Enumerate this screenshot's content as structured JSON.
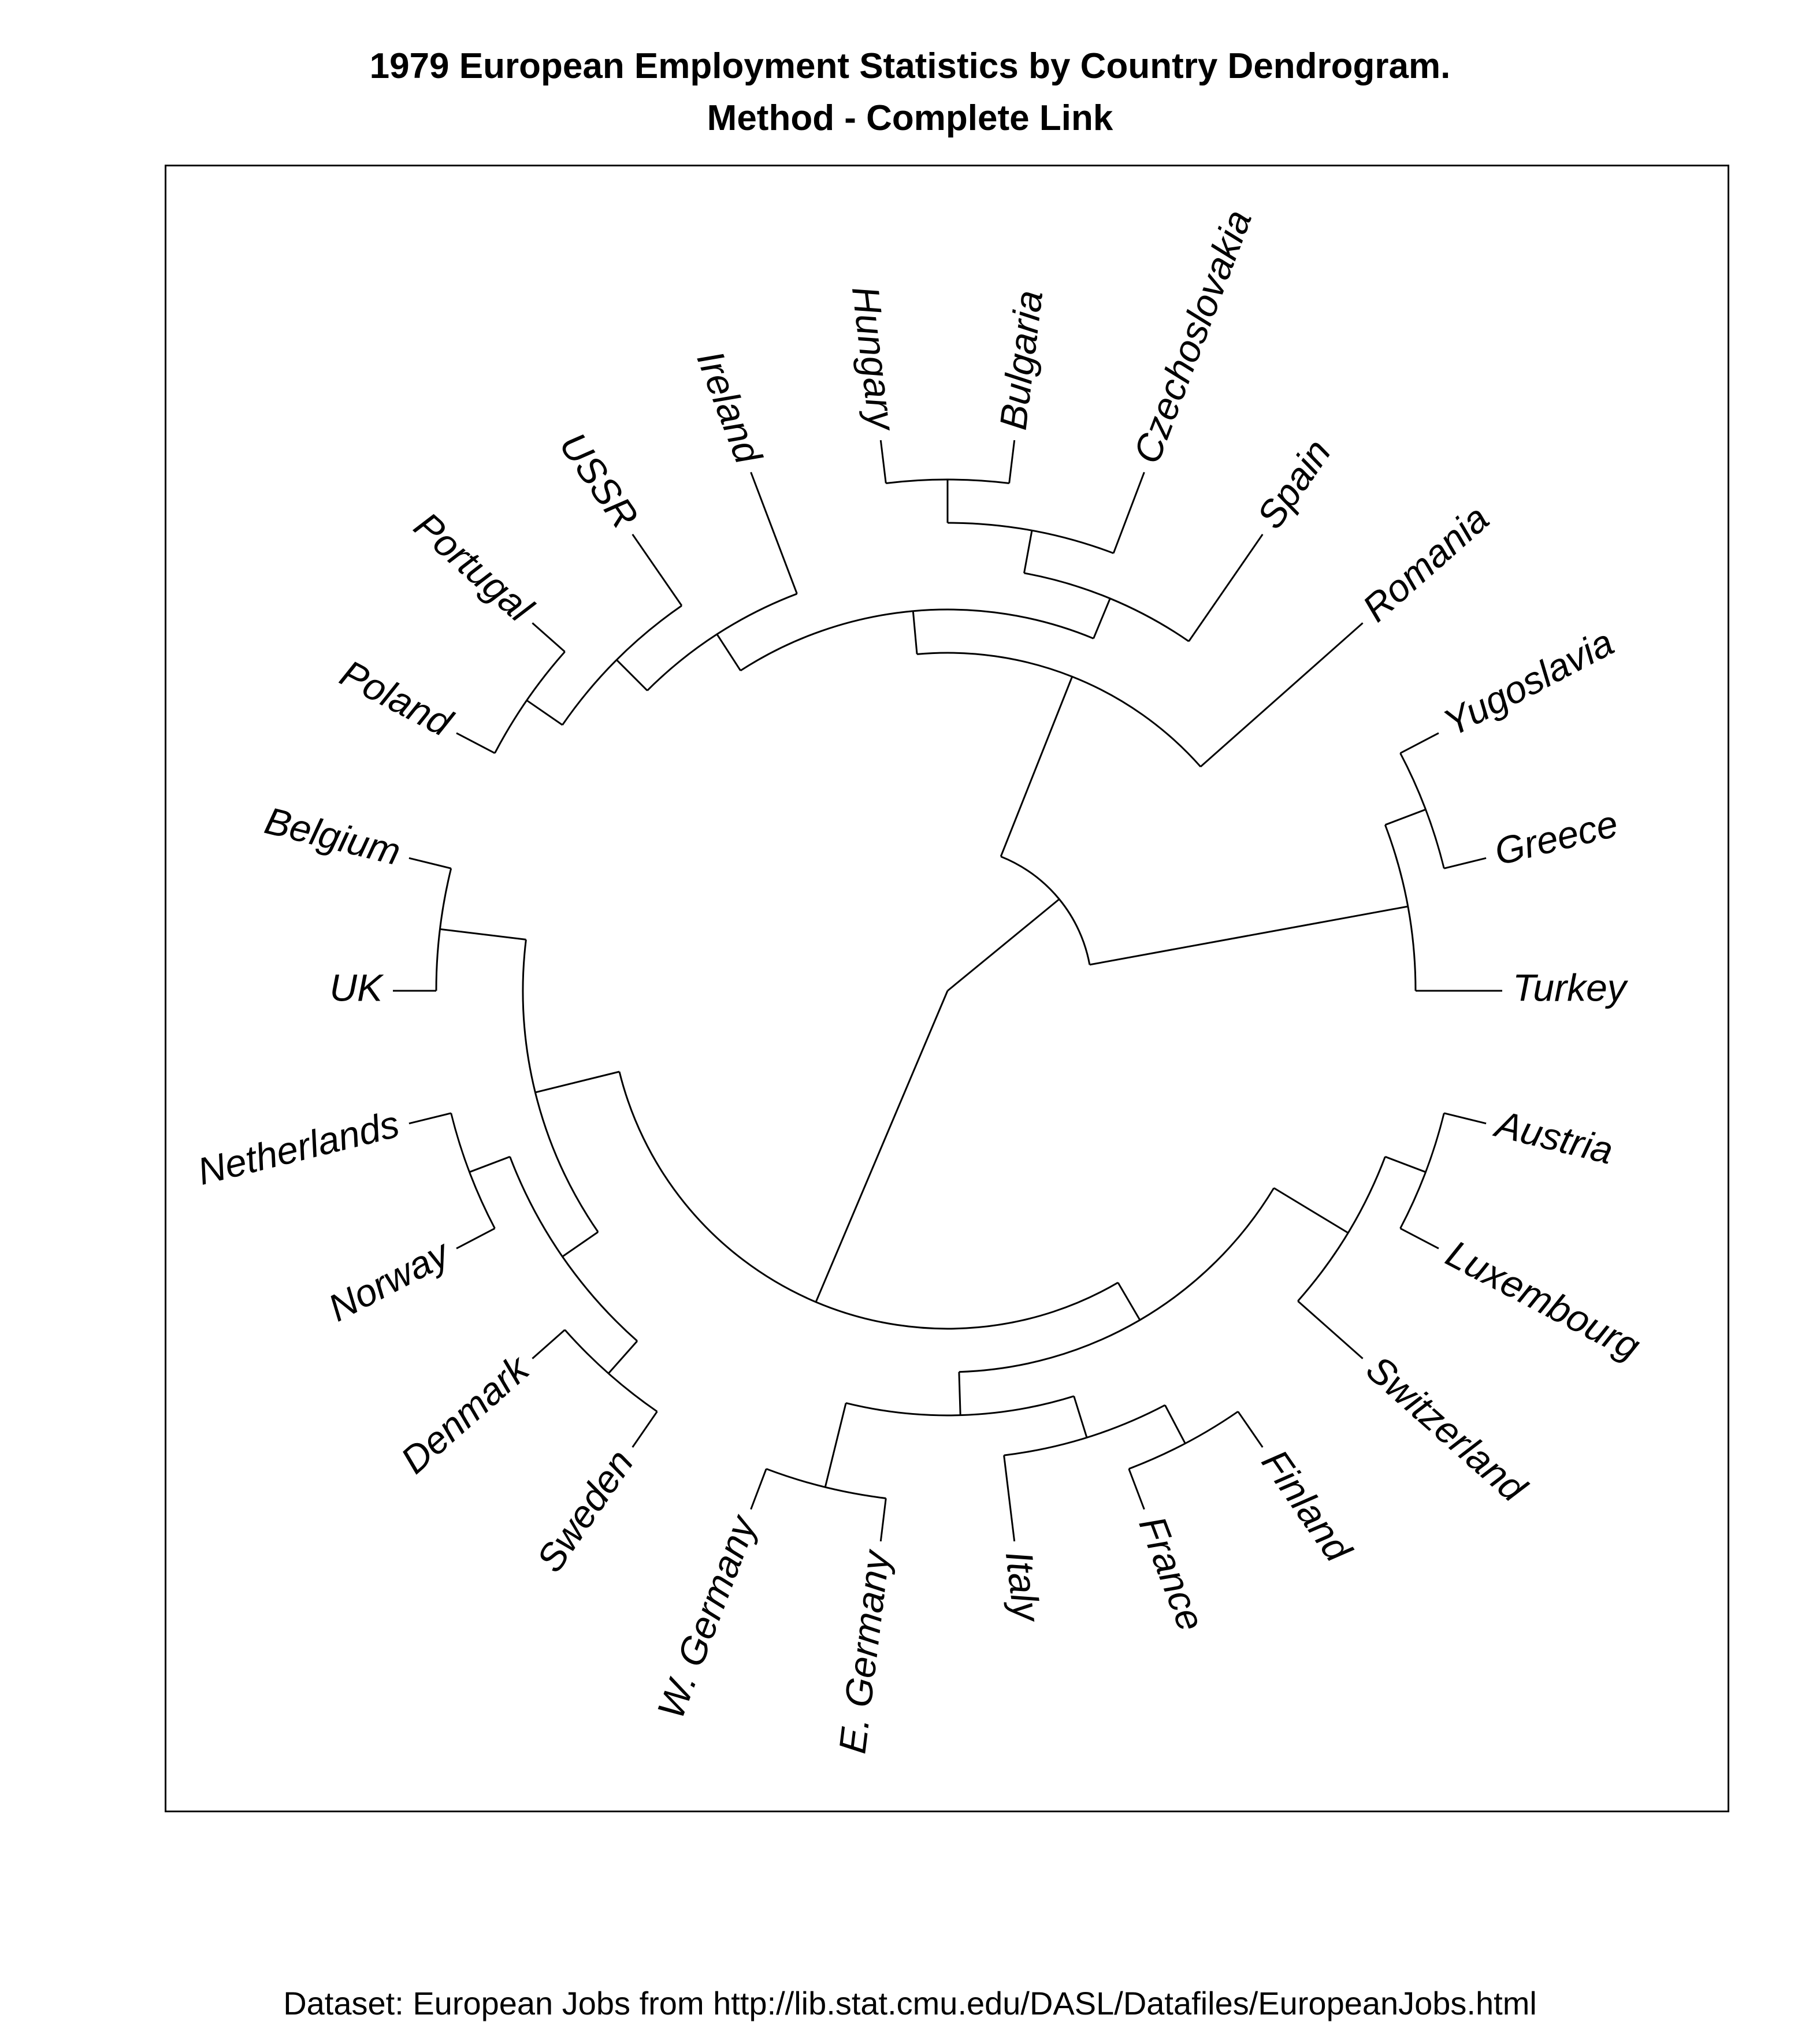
{
  "title": {
    "line1": "1979 European Employment Statistics by Country Dendrogram.",
    "line2": "Method -  Complete Link"
  },
  "footer": "Dataset: European Jobs from http://lib.stat.cmu.edu/DASL/Datafiles/EuropeanJobs.html",
  "dendrogram": {
    "layout": "circular",
    "method": "Complete Link",
    "leaves": [
      "Turkey",
      "Greece",
      "Yugoslavia",
      "Romania",
      "Spain",
      "Czechoslovakia",
      "Bulgaria",
      "Hungary",
      "Ireland",
      "USSR",
      "Portugal",
      "Poland",
      "Belgium",
      "UK",
      "Netherlands",
      "Norway",
      "Denmark",
      "Sweden",
      "W. Germany",
      "E. Germany",
      "Italy",
      "France",
      "Finland",
      "Switzerland",
      "Luxembourg",
      "Austria"
    ],
    "tree": {
      "children": [
        {
          "children": [
            {
              "children": [
                {
                  "leaf": "Turkey"
                },
                {
                  "children": [
                    {
                      "leaf": "Greece"
                    },
                    {
                      "leaf": "Yugoslavia"
                    }
                  ]
                }
              ]
            },
            {
              "children": [
                {
                  "leaf": "Romania"
                },
                {
                  "children": [
                    {
                      "children": [
                        {
                          "leaf": "Spain"
                        },
                        {
                          "children": [
                            {
                              "leaf": "Czechoslovakia"
                            },
                            {
                              "children": [
                                {
                                  "leaf": "Bulgaria"
                                },
                                {
                                  "leaf": "Hungary"
                                }
                              ]
                            }
                          ]
                        }
                      ]
                    },
                    {
                      "children": [
                        {
                          "leaf": "Ireland"
                        },
                        {
                          "children": [
                            {
                              "leaf": "USSR"
                            },
                            {
                              "children": [
                                {
                                  "leaf": "Portugal"
                                },
                                {
                                  "leaf": "Poland"
                                }
                              ]
                            }
                          ]
                        }
                      ]
                    }
                  ]
                }
              ]
            }
          ]
        },
        {
          "children": [
            {
              "children": [
                {
                  "children": [
                    {
                      "leaf": "Belgium"
                    },
                    {
                      "leaf": "UK"
                    }
                  ]
                },
                {
                  "children": [
                    {
                      "children": [
                        {
                          "leaf": "Netherlands"
                        },
                        {
                          "leaf": "Norway"
                        }
                      ]
                    },
                    {
                      "children": [
                        {
                          "leaf": "Denmark"
                        },
                        {
                          "leaf": "Sweden"
                        }
                      ]
                    }
                  ]
                }
              ]
            },
            {
              "children": [
                {
                  "children": [
                    {
                      "children": [
                        {
                          "leaf": "W. Germany"
                        },
                        {
                          "leaf": "E. Germany"
                        }
                      ]
                    },
                    {
                      "children": [
                        {
                          "leaf": "Italy"
                        },
                        {
                          "children": [
                            {
                              "leaf": "France"
                            },
                            {
                              "leaf": "Finland"
                            }
                          ]
                        }
                      ]
                    }
                  ]
                },
                {
                  "children": [
                    {
                      "leaf": "Switzerland"
                    },
                    {
                      "children": [
                        {
                          "leaf": "Luxembourg"
                        },
                        {
                          "leaf": "Austria"
                        }
                      ]
                    }
                  ]
                }
              ]
            }
          ]
        }
      ]
    }
  }
}
